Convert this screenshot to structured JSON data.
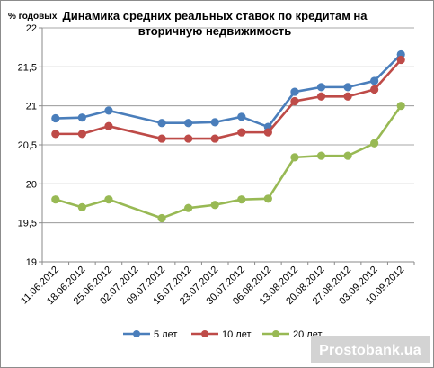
{
  "chart_data": {
    "type": "line",
    "title_line1": "Динамика средних реальных ставок по кредитам на",
    "title_line2": "вторичную недвижимость",
    "ylabel": "% годовых",
    "ylim": [
      19,
      22
    ],
    "yticks": [
      "19",
      "19,5",
      "20",
      "20,5",
      "21",
      "21,5",
      "22"
    ],
    "ytick_values": [
      19,
      19.5,
      20,
      20.5,
      21,
      21.5,
      22
    ],
    "categories": [
      "11.06.2012",
      "18.06.2012",
      "25.06.2012",
      "02.07.2012",
      "09.07.2012",
      "16.07.2012",
      "23.07.2012",
      "30.07.2012",
      "06.08.2012",
      "13.08.2012",
      "20.08.2012",
      "27.08.2012",
      "03.09.2012",
      "10.09.2012"
    ],
    "grid": true,
    "legend_position": "bottom",
    "series": [
      {
        "name": "5 лет",
        "color": "#4a7ebb",
        "values": [
          20.84,
          20.85,
          20.94,
          null,
          20.78,
          20.78,
          20.79,
          20.86,
          20.73,
          21.18,
          21.24,
          21.24,
          21.32,
          21.66
        ]
      },
      {
        "name": "10 лет",
        "color": "#be4b48",
        "values": [
          20.64,
          20.64,
          20.74,
          null,
          20.58,
          20.58,
          20.58,
          20.66,
          20.66,
          21.06,
          21.12,
          21.12,
          21.21,
          21.59
        ]
      },
      {
        "name": "20 лет",
        "color": "#98b954",
        "values": [
          19.8,
          19.7,
          19.8,
          null,
          19.56,
          19.69,
          19.73,
          19.8,
          19.81,
          20.34,
          20.36,
          20.36,
          20.52,
          21.0
        ]
      }
    ]
  },
  "watermark": {
    "text": "Prostobank.ua"
  }
}
